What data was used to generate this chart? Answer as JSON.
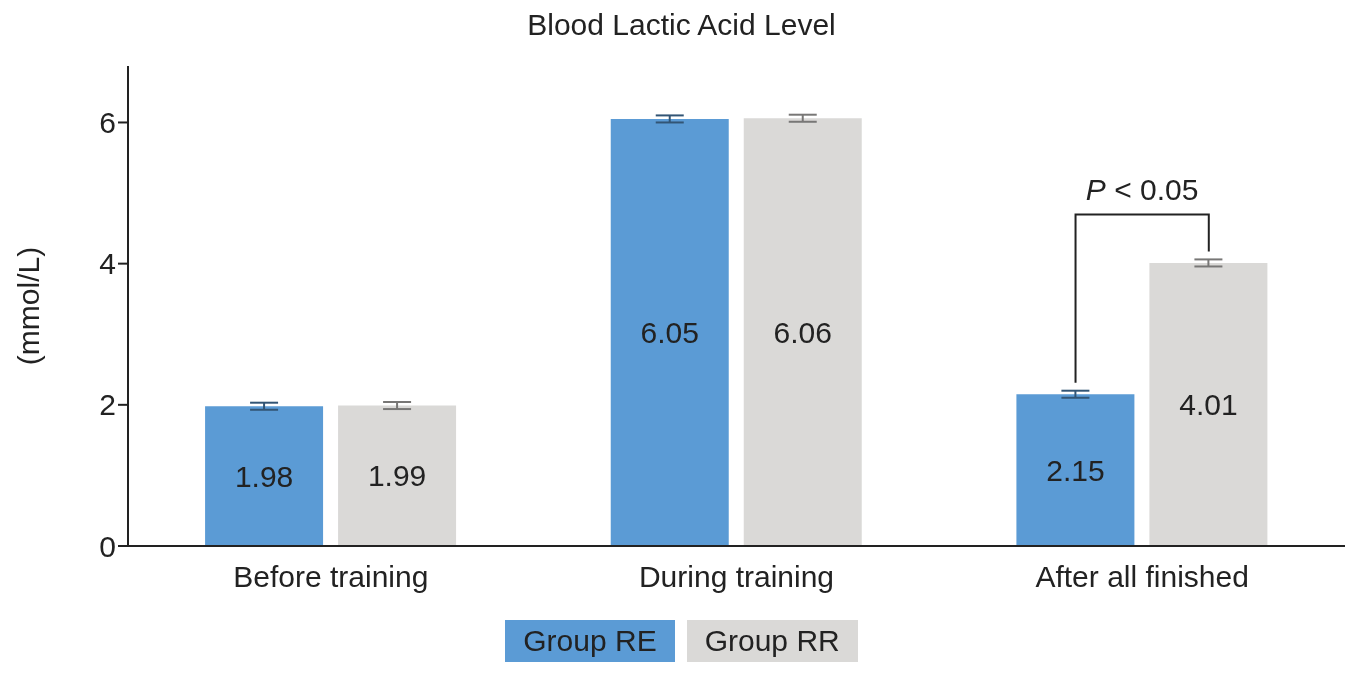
{
  "chart_data": {
    "type": "bar",
    "title": "Blood Lactic Acid Level",
    "ylabel": "(mmol/L)",
    "categories": [
      "Before training",
      "During training",
      "After all finished"
    ],
    "series": [
      {
        "name": "Group RE",
        "color": "#5b9bd5",
        "values": [
          1.98,
          6.05,
          2.15
        ],
        "errors": [
          0.05,
          0.05,
          0.05
        ]
      },
      {
        "name": "Group RR",
        "color": "#dad9d7",
        "values": [
          1.99,
          6.06,
          4.01
        ],
        "errors": [
          0.05,
          0.05,
          0.05
        ]
      }
    ],
    "ylim": [
      0,
      6.8
    ],
    "yticks": [
      0,
      2,
      4,
      6
    ],
    "grid": false,
    "legend": "bottom",
    "data_labels": true,
    "annotations": [
      "P < 0.05"
    ]
  }
}
